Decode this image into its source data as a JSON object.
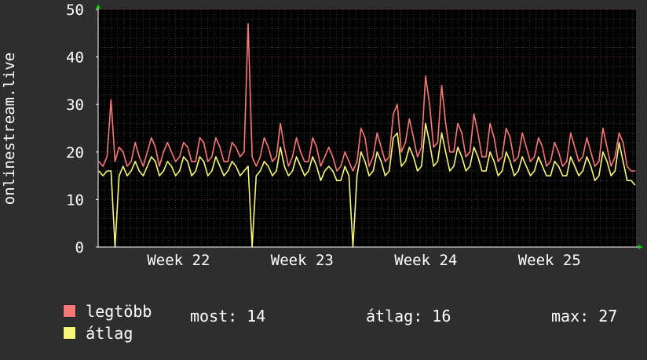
{
  "chart_data": {
    "type": "line",
    "ylabel": "onlinestream.live",
    "ylim": [
      0,
      50
    ],
    "yticks": [
      0,
      10,
      20,
      30,
      40,
      50
    ],
    "x_labels": [
      "Week 22",
      "Week 23",
      "Week 24",
      "Week 25"
    ],
    "grid": true,
    "legend_placement": "bottom-left",
    "series": [
      {
        "name": "legtöbb",
        "color": "#f87878",
        "values": [
          18,
          17,
          19,
          31,
          18,
          21,
          20,
          17,
          18,
          22,
          19,
          17,
          20,
          23,
          21,
          17,
          20,
          22,
          20,
          18,
          19,
          22,
          21,
          18,
          18,
          23,
          22,
          18,
          19,
          23,
          21,
          18,
          18,
          22,
          21,
          19,
          20,
          47,
          19,
          17,
          19,
          23,
          21,
          18,
          19,
          26,
          21,
          17,
          19,
          23,
          20,
          18,
          18,
          23,
          21,
          17,
          19,
          21,
          19,
          16,
          17,
          20,
          18,
          16,
          18,
          25,
          23,
          17,
          19,
          24,
          21,
          18,
          19,
          28,
          30,
          20,
          22,
          27,
          23,
          19,
          21,
          36,
          30,
          21,
          22,
          34,
          26,
          20,
          20,
          26,
          24,
          19,
          20,
          28,
          24,
          19,
          19,
          26,
          23,
          18,
          19,
          25,
          23,
          18,
          19,
          24,
          21,
          18,
          19,
          23,
          21,
          17,
          18,
          22,
          20,
          17,
          18,
          24,
          21,
          18,
          19,
          23,
          20,
          17,
          18,
          25,
          21,
          17,
          19,
          24,
          22,
          17,
          16,
          16
        ],
        "spikes": [
          {
            "week_pos": 0.2,
            "value": 25
          },
          {
            "week_pos": 1.78,
            "value": 20
          },
          {
            "week_pos": 2.78,
            "value": 23
          }
        ]
      },
      {
        "name": "átlag",
        "color": "#f8f878",
        "values": [
          16,
          15,
          16,
          16,
          0,
          15,
          17,
          15,
          16,
          18,
          16,
          15,
          17,
          19,
          18,
          15,
          16,
          18,
          17,
          15,
          16,
          19,
          18,
          15,
          16,
          19,
          18,
          15,
          16,
          19,
          17,
          15,
          16,
          18,
          17,
          15,
          16,
          17,
          0,
          15,
          16,
          18,
          17,
          15,
          16,
          21,
          17,
          15,
          16,
          19,
          17,
          15,
          16,
          19,
          17,
          14,
          16,
          17,
          16,
          14,
          14,
          17,
          15,
          0,
          15,
          20,
          18,
          15,
          16,
          20,
          18,
          15,
          16,
          23,
          24,
          17,
          18,
          21,
          19,
          16,
          17,
          26,
          22,
          17,
          18,
          24,
          20,
          16,
          17,
          21,
          19,
          16,
          17,
          21,
          19,
          16,
          16,
          20,
          18,
          15,
          16,
          20,
          18,
          15,
          16,
          19,
          17,
          15,
          16,
          19,
          17,
          15,
          15,
          18,
          17,
          15,
          15,
          19,
          17,
          15,
          16,
          19,
          17,
          14,
          15,
          20,
          18,
          15,
          16,
          22,
          18,
          14,
          14,
          13
        ],
        "current": 14,
        "average": 16,
        "maximum": 27
      }
    ]
  },
  "legend": {
    "items": [
      {
        "label": "legtöbb",
        "color": "#f87878"
      },
      {
        "label": "átlag",
        "color": "#f8f878"
      }
    ],
    "stats": {
      "now_label": "most:",
      "now_value": "14",
      "avg_label": "átlag:",
      "avg_value": "16",
      "max_label": "max:",
      "max_value": "27"
    }
  },
  "colors": {
    "background": "#2e2e2e",
    "plot_background": "#000000",
    "grid_minor": "#3a3a3a",
    "grid_major": "#6a2a2a",
    "axis": "#ffffff",
    "arrow": "#00cc00"
  }
}
